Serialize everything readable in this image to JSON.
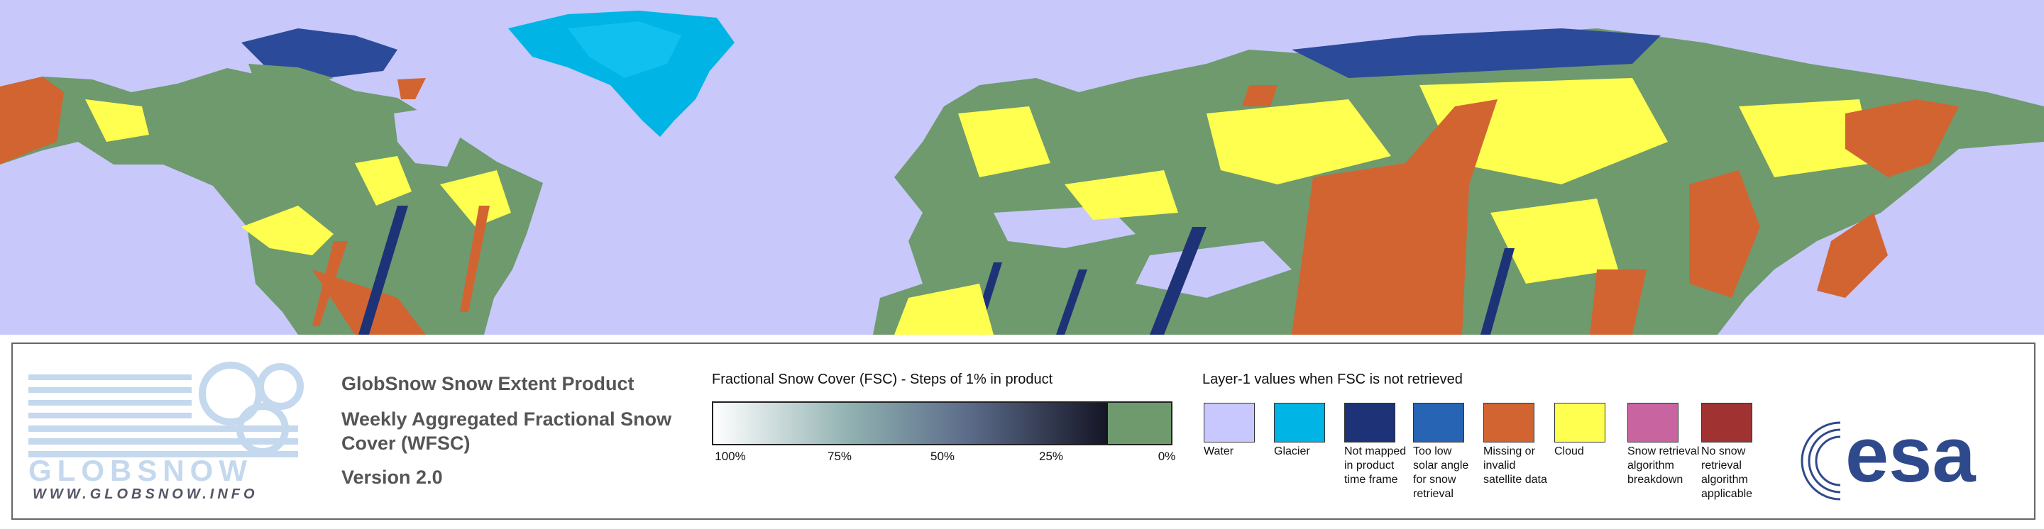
{
  "logo": {
    "wordmark": "GLOBSNOW",
    "url": "WWW.GLOBSNOW.INFO"
  },
  "product": {
    "title": "GlobSnow Snow Extent Product",
    "subtitle": "Weekly Aggregated Fractional Snow Cover (WFSC)",
    "version": "Version 2.0"
  },
  "fsc_scale": {
    "title": "Fractional Snow Cover (FSC) - Steps of 1% in product",
    "ticks": [
      "100%",
      "75%",
      "50%",
      "25%",
      "0%"
    ]
  },
  "layer1": {
    "title": "Layer-1 values when FSC is not retrieved",
    "items": [
      {
        "label": "Water",
        "color": "#c8c8ff"
      },
      {
        "label": "Glacier",
        "color": "#00b4e6"
      },
      {
        "label": "Not mapped in product time frame",
        "color": "#1e3278"
      },
      {
        "label": "Too low solar angle for snow retrieval",
        "color": "#2864b4"
      },
      {
        "label": "Missing or invalid satellite data",
        "color": "#d26432"
      },
      {
        "label": "Cloud",
        "color": "#ffff50"
      },
      {
        "label": "Snow retrieval algorithm breakdown",
        "color": "#c864a0"
      },
      {
        "label": "No snow retrieval algorithm applicable",
        "color": "#a03232"
      }
    ]
  },
  "agency": {
    "logo": "esa"
  }
}
